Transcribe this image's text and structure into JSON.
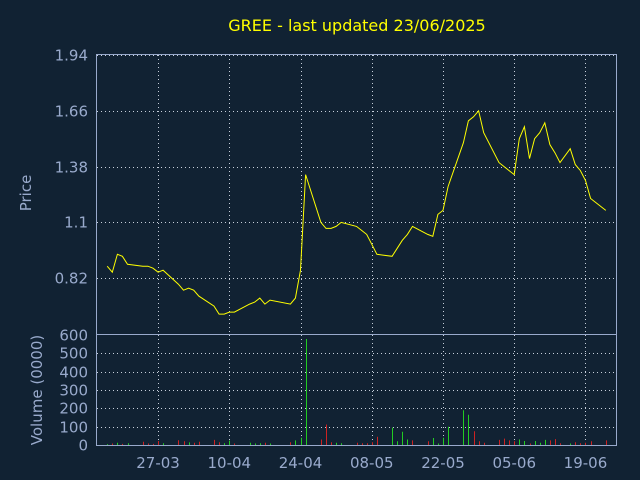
{
  "title": "GREE - last updated 23/06/2025",
  "colors": {
    "background": "#112233",
    "title": "#ffff00",
    "price_line": "#ffff00",
    "axis_text": "#99aacc",
    "frame": "#99aacc",
    "volume_up": "#22cc22",
    "volume_down": "#cc2222"
  },
  "chart_data": [
    {
      "type": "line",
      "name": "price",
      "ylabel": "Price",
      "ylim": [
        0.54,
        1.94
      ],
      "y_ticks": [
        "1.94",
        "1.66",
        "1.38",
        "1.1",
        "0.82"
      ],
      "x_ticks": [
        "27-03",
        "10-04",
        "24-04",
        "08-05",
        "22-05",
        "05-06",
        "19-06"
      ],
      "grid": true,
      "series": [
        {
          "values": [
            [
              "2025-03-17",
              0.88
            ],
            [
              "2025-03-18",
              0.85
            ],
            [
              "2025-03-19",
              0.94
            ],
            [
              "2025-03-20",
              0.93
            ],
            [
              "2025-03-21",
              0.89
            ],
            [
              "2025-03-24",
              0.88
            ],
            [
              "2025-03-25",
              0.88
            ],
            [
              "2025-03-26",
              0.87
            ],
            [
              "2025-03-27",
              0.85
            ],
            [
              "2025-03-28",
              0.86
            ],
            [
              "2025-03-31",
              0.79
            ],
            [
              "2025-04-01",
              0.76
            ],
            [
              "2025-04-02",
              0.77
            ],
            [
              "2025-04-03",
              0.76
            ],
            [
              "2025-04-04",
              0.73
            ],
            [
              "2025-04-07",
              0.68
            ],
            [
              "2025-04-08",
              0.64
            ],
            [
              "2025-04-09",
              0.64
            ],
            [
              "2025-04-10",
              0.65
            ],
            [
              "2025-04-11",
              0.65
            ],
            [
              "2025-04-14",
              0.69
            ],
            [
              "2025-04-15",
              0.7
            ],
            [
              "2025-04-16",
              0.72
            ],
            [
              "2025-04-17",
              0.69
            ],
            [
              "2025-04-18",
              0.71
            ],
            [
              "2025-04-22",
              0.69
            ],
            [
              "2025-04-23",
              0.72
            ],
            [
              "2025-04-24",
              0.86
            ],
            [
              "2025-04-25",
              1.34
            ],
            [
              "2025-04-28",
              1.1
            ],
            [
              "2025-04-29",
              1.07
            ],
            [
              "2025-04-30",
              1.07
            ],
            [
              "2025-05-01",
              1.08
            ],
            [
              "2025-05-02",
              1.1
            ],
            [
              "2025-05-05",
              1.08
            ],
            [
              "2025-05-06",
              1.06
            ],
            [
              "2025-05-07",
              1.04
            ],
            [
              "2025-05-08",
              0.99
            ],
            [
              "2025-05-09",
              0.94
            ],
            [
              "2025-05-12",
              0.93
            ],
            [
              "2025-05-13",
              0.97
            ],
            [
              "2025-05-14",
              1.01
            ],
            [
              "2025-05-15",
              1.04
            ],
            [
              "2025-05-16",
              1.08
            ],
            [
              "2025-05-19",
              1.04
            ],
            [
              "2025-05-20",
              1.03
            ],
            [
              "2025-05-21",
              1.14
            ],
            [
              "2025-05-22",
              1.16
            ],
            [
              "2025-05-23",
              1.28
            ],
            [
              "2025-05-26",
              1.5
            ],
            [
              "2025-05-27",
              1.61
            ],
            [
              "2025-05-28",
              1.63
            ],
            [
              "2025-05-29",
              1.66
            ],
            [
              "2025-05-30",
              1.55
            ],
            [
              "2025-06-02",
              1.4
            ],
            [
              "2025-06-03",
              1.38
            ],
            [
              "2025-06-04",
              1.36
            ],
            [
              "2025-06-05",
              1.34
            ],
            [
              "2025-06-06",
              1.52
            ],
            [
              "2025-06-07",
              1.58
            ],
            [
              "2025-06-08",
              1.42
            ],
            [
              "2025-06-09",
              1.52
            ],
            [
              "2025-06-10",
              1.55
            ],
            [
              "2025-06-11",
              1.6
            ],
            [
              "2025-06-12",
              1.49
            ],
            [
              "2025-06-13",
              1.45
            ],
            [
              "2025-06-14",
              1.4
            ],
            [
              "2025-06-16",
              1.47
            ],
            [
              "2025-06-17",
              1.39
            ],
            [
              "2025-06-18",
              1.36
            ],
            [
              "2025-06-19",
              1.31
            ],
            [
              "2025-06-20",
              1.22
            ],
            [
              "2025-06-23",
              1.16
            ]
          ]
        }
      ]
    },
    {
      "type": "bar",
      "name": "volume",
      "ylabel": "Volume (0000)",
      "ylim": [
        0,
        600
      ],
      "y_ticks": [
        "600",
        "500",
        "400",
        "300",
        "200",
        "100",
        "0"
      ],
      "x_ticks": [
        "27-03",
        "10-04",
        "24-04",
        "08-05",
        "22-05",
        "05-06",
        "19-06"
      ],
      "grid": true,
      "series": [
        {
          "values": [
            [
              "2025-03-17",
              5,
              "up"
            ],
            [
              "2025-03-18",
              8,
              "down"
            ],
            [
              "2025-03-19",
              12,
              "up"
            ],
            [
              "2025-03-20",
              6,
              "down"
            ],
            [
              "2025-03-21",
              10,
              "up"
            ],
            [
              "2025-03-24",
              18,
              "down"
            ],
            [
              "2025-03-25",
              8,
              "down"
            ],
            [
              "2025-03-26",
              6,
              "down"
            ],
            [
              "2025-03-27",
              22,
              "down"
            ],
            [
              "2025-03-28",
              10,
              "up"
            ],
            [
              "2025-03-31",
              26,
              "down"
            ],
            [
              "2025-04-01",
              20,
              "down"
            ],
            [
              "2025-04-02",
              14,
              "up"
            ],
            [
              "2025-04-03",
              12,
              "down"
            ],
            [
              "2025-04-04",
              18,
              "down"
            ],
            [
              "2025-04-07",
              28,
              "down"
            ],
            [
              "2025-04-08",
              15,
              "down"
            ],
            [
              "2025-04-09",
              10,
              "up"
            ],
            [
              "2025-04-10",
              24,
              "up"
            ],
            [
              "2025-04-11",
              8,
              "down"
            ],
            [
              "2025-04-14",
              12,
              "up"
            ],
            [
              "2025-04-15",
              8,
              "up"
            ],
            [
              "2025-04-16",
              10,
              "up"
            ],
            [
              "2025-04-17",
              12,
              "down"
            ],
            [
              "2025-04-18",
              8,
              "up"
            ],
            [
              "2025-04-22",
              15,
              "down"
            ],
            [
              "2025-04-23",
              25,
              "up"
            ],
            [
              "2025-04-24",
              40,
              "up"
            ],
            [
              "2025-04-25",
              578,
              "up"
            ],
            [
              "2025-04-28",
              30,
              "down"
            ],
            [
              "2025-04-29",
              112,
              "down"
            ],
            [
              "2025-04-30",
              15,
              "down"
            ],
            [
              "2025-05-01",
              12,
              "up"
            ],
            [
              "2025-05-02",
              10,
              "up"
            ],
            [
              "2025-05-05",
              12,
              "down"
            ],
            [
              "2025-05-06",
              10,
              "down"
            ],
            [
              "2025-05-07",
              10,
              "down"
            ],
            [
              "2025-05-08",
              15,
              "down"
            ],
            [
              "2025-05-09",
              45,
              "down"
            ],
            [
              "2025-05-12",
              95,
              "up"
            ],
            [
              "2025-05-13",
              20,
              "up"
            ],
            [
              "2025-05-14",
              72,
              "up"
            ],
            [
              "2025-05-15",
              30,
              "up"
            ],
            [
              "2025-05-16",
              25,
              "down"
            ],
            [
              "2025-05-19",
              20,
              "down"
            ],
            [
              "2025-05-20",
              38,
              "up"
            ],
            [
              "2025-05-21",
              8,
              "up"
            ],
            [
              "2025-05-22",
              40,
              "up"
            ],
            [
              "2025-05-23",
              100,
              "up"
            ],
            [
              "2025-05-26",
              190,
              "up"
            ],
            [
              "2025-05-27",
              165,
              "up"
            ],
            [
              "2025-05-28",
              75,
              "down"
            ],
            [
              "2025-05-29",
              20,
              "down"
            ],
            [
              "2025-05-30",
              12,
              "down"
            ],
            [
              "2025-06-02",
              28,
              "down"
            ],
            [
              "2025-06-03",
              35,
              "down"
            ],
            [
              "2025-06-04",
              25,
              "down"
            ],
            [
              "2025-06-05",
              20,
              "down"
            ],
            [
              "2025-06-06",
              30,
              "up"
            ],
            [
              "2025-06-07",
              22,
              "up"
            ],
            [
              "2025-06-08",
              8,
              "down"
            ],
            [
              "2025-06-09",
              22,
              "up"
            ],
            [
              "2025-06-10",
              12,
              "up"
            ],
            [
              "2025-06-11",
              28,
              "up"
            ],
            [
              "2025-06-12",
              25,
              "down"
            ],
            [
              "2025-06-13",
              32,
              "down"
            ],
            [
              "2025-06-14",
              10,
              "down"
            ],
            [
              "2025-06-16",
              8,
              "up"
            ],
            [
              "2025-06-17",
              15,
              "down"
            ],
            [
              "2025-06-18",
              10,
              "down"
            ],
            [
              "2025-06-19",
              12,
              "down"
            ],
            [
              "2025-06-20",
              20,
              "down"
            ],
            [
              "2025-06-23",
              25,
              "down"
            ]
          ]
        }
      ]
    }
  ]
}
